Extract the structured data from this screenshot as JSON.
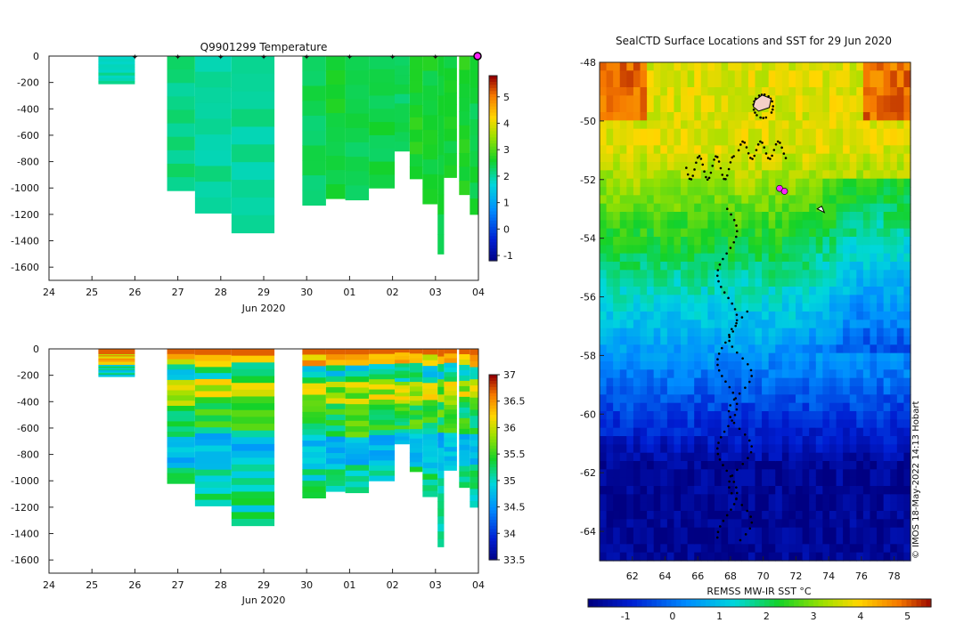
{
  "chart_data": [
    {
      "type": "heatmap",
      "panel": "depth-time temperature section",
      "title": "Q9901299  Temperature",
      "xlabel": "Jun 2020",
      "x_ticks": [
        "24",
        "25",
        "26",
        "27",
        "28",
        "29",
        "30",
        "01",
        "02",
        "03",
        "04"
      ],
      "y_ticks": [
        "0",
        "-200",
        "-400",
        "-600",
        "-800",
        "-1000",
        "-1200",
        "-1400",
        "-1600"
      ],
      "ylim": [
        -1700,
        0
      ],
      "colorbar_ticks": [
        "5",
        "4",
        "3",
        "2",
        "1",
        "0",
        "-1"
      ],
      "colorbar_range": [
        -1.2,
        5.8
      ],
      "profiles": [
        {
          "t0": 25.15,
          "t1": 26.0,
          "depth": 210,
          "temp": 2.0
        },
        {
          "t0": 26.75,
          "t1": 27.4,
          "depth": 1020,
          "temp": 2.2
        },
        {
          "t0": 27.4,
          "t1": 28.25,
          "depth": 1190,
          "temp": 2.1
        },
        {
          "t0": 28.25,
          "t1": 29.25,
          "depth": 1340,
          "temp": 2.1
        },
        {
          "t0": 29.9,
          "t1": 30.45,
          "depth": 1130,
          "temp": 2.4
        },
        {
          "t0": 30.45,
          "t1": 30.9,
          "depth": 1080,
          "temp": 2.6
        },
        {
          "t0": 30.9,
          "t1": 31.45,
          "depth": 1090,
          "temp": 2.4
        },
        {
          "t0": 31.45,
          "t1": 32.05,
          "depth": 1000,
          "temp": 2.5
        },
        {
          "t0": 32.05,
          "t1": 32.4,
          "depth": 720,
          "temp": 2.4
        },
        {
          "t0": 32.4,
          "t1": 32.7,
          "depth": 930,
          "temp": 2.7
        },
        {
          "t0": 32.7,
          "t1": 33.05,
          "depth": 1120,
          "temp": 2.6
        },
        {
          "t0": 33.05,
          "t1": 33.2,
          "depth": 1500,
          "temp": 2.5
        },
        {
          "t0": 33.2,
          "t1": 33.5,
          "depth": 920,
          "temp": 2.6
        },
        {
          "t0": 33.55,
          "t1": 33.8,
          "depth": 1050,
          "temp": 2.7
        },
        {
          "t0": 33.8,
          "t1": 34.0,
          "depth": 1200,
          "temp": 2.5
        }
      ],
      "surface_markers_day": [
        26,
        27,
        28,
        29,
        30,
        31,
        32,
        33
      ],
      "last_position_day": 34.0
    },
    {
      "type": "heatmap",
      "panel": "depth-time salinity section",
      "title": "",
      "xlabel": "Jun 2020",
      "x_ticks": [
        "24",
        "25",
        "26",
        "27",
        "28",
        "29",
        "30",
        "01",
        "02",
        "03",
        "04"
      ],
      "y_ticks": [
        "0",
        "-200",
        "-400",
        "-600",
        "-800",
        "-1000",
        "-1200",
        "-1400",
        "-1600"
      ],
      "ylim": [
        -1700,
        0
      ],
      "colorbar_ticks": [
        "37",
        "36.5",
        "36",
        "35.5",
        "35",
        "34.5",
        "34",
        "33.5"
      ],
      "colorbar_range": [
        33.5,
        37.0
      ],
      "profiles": [
        {
          "t0": 25.15,
          "t1": 26.0,
          "depth": 210
        },
        {
          "t0": 26.75,
          "t1": 27.4,
          "depth": 1020
        },
        {
          "t0": 27.4,
          "t1": 28.25,
          "depth": 1190
        },
        {
          "t0": 28.25,
          "t1": 29.25,
          "depth": 1340
        },
        {
          "t0": 29.9,
          "t1": 30.45,
          "depth": 1130
        },
        {
          "t0": 30.45,
          "t1": 30.9,
          "depth": 1080
        },
        {
          "t0": 30.9,
          "t1": 31.45,
          "depth": 1090
        },
        {
          "t0": 31.45,
          "t1": 32.05,
          "depth": 1000
        },
        {
          "t0": 32.05,
          "t1": 32.4,
          "depth": 720
        },
        {
          "t0": 32.4,
          "t1": 32.7,
          "depth": 930
        },
        {
          "t0": 32.7,
          "t1": 33.05,
          "depth": 1120
        },
        {
          "t0": 33.05,
          "t1": 33.2,
          "depth": 1500
        },
        {
          "t0": 33.2,
          "t1": 33.5,
          "depth": 920
        },
        {
          "t0": 33.55,
          "t1": 33.8,
          "depth": 1050
        },
        {
          "t0": 33.8,
          "t1": 34.0,
          "depth": 1200
        }
      ]
    },
    {
      "type": "heatmap",
      "panel": "SST map",
      "title": "SealCTD Surface Locations and SST for 29 Jun 2020",
      "xlabel": "REMSS MW-IR SST °C",
      "x_ticks": [
        "62",
        "64",
        "66",
        "68",
        "70",
        "72",
        "74",
        "76",
        "78"
      ],
      "y_ticks": [
        "-48",
        "-50",
        "-52",
        "-54",
        "-56",
        "-58",
        "-60",
        "-62",
        "-64"
      ],
      "xlim": [
        60,
        79
      ],
      "ylim": [
        -65,
        -48
      ],
      "colorbar_ticks": [
        "-1",
        "0",
        "1",
        "2",
        "3",
        "4",
        "5"
      ],
      "colorbar_range": [
        -1.8,
        5.5
      ],
      "credit": "© IMOS 18-May-2022 14:13 Hobart",
      "highlight_points": [
        [
          71.0,
          -52.3
        ],
        [
          71.3,
          -52.4
        ]
      ]
    }
  ]
}
